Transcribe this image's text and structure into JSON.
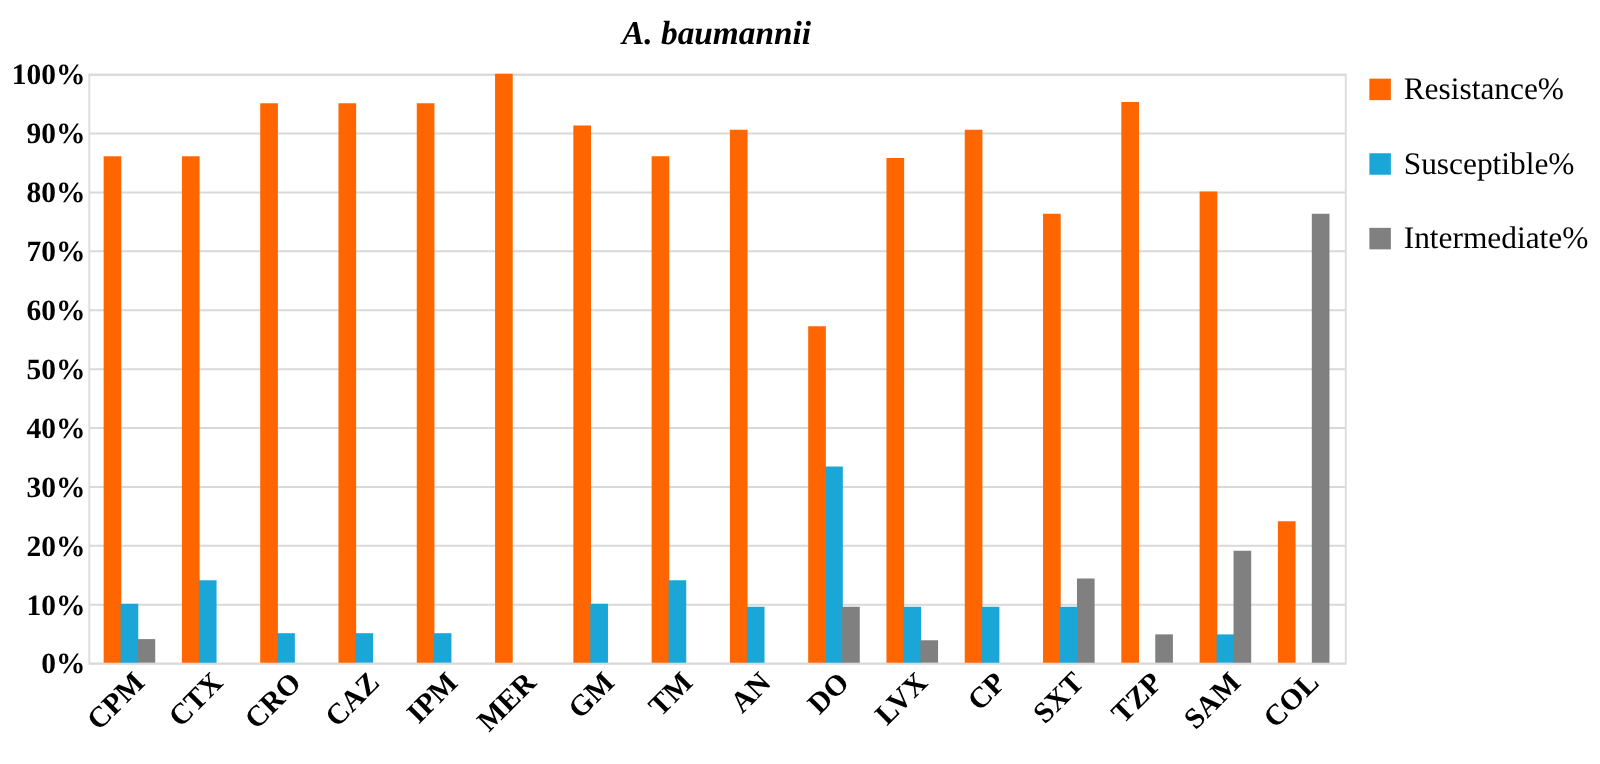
{
  "chart_data": {
    "type": "bar",
    "title": "A. baumannii",
    "categories": [
      "CPM",
      "CTX",
      "CRO",
      "CAZ",
      "IPM",
      "MER",
      "GM",
      "TM",
      "AN",
      "DO",
      "LVX",
      "CP",
      "SXT",
      "TZP",
      "SAM",
      "COL"
    ],
    "series": [
      {
        "name": "Resistance%",
        "color": "#ff6600",
        "values": [
          86,
          86,
          95,
          95,
          95,
          100,
          91.2,
          86,
          90.5,
          57.1,
          85.7,
          90.5,
          76.2,
          95.2,
          80,
          24
        ]
      },
      {
        "name": "Susceptible%",
        "color": "#1aa7d8",
        "values": [
          10,
          14,
          5,
          5,
          5,
          null,
          10,
          14,
          9.5,
          33.3,
          9.5,
          9.5,
          9.5,
          null,
          4.8,
          null
        ]
      },
      {
        "name": "Intermediate%",
        "color": "#808080",
        "values": [
          4,
          null,
          null,
          null,
          null,
          null,
          null,
          null,
          null,
          9.5,
          3.8,
          null,
          14.3,
          4.8,
          19,
          76.2
        ]
      }
    ],
    "ylim": [
      0,
      100
    ],
    "yticks": [
      {
        "value": 0,
        "label": "0%"
      },
      {
        "value": 10,
        "label": "10%"
      },
      {
        "value": 20,
        "label": "20%"
      },
      {
        "value": 30,
        "label": "30%"
      },
      {
        "value": 40,
        "label": "40%"
      },
      {
        "value": 50,
        "label": "50%"
      },
      {
        "value": 60,
        "label": "60%"
      },
      {
        "value": 70,
        "label": "70%"
      },
      {
        "value": 80,
        "label": "80%"
      },
      {
        "value": 90,
        "label": "90%"
      },
      {
        "value": 100,
        "label": "100%"
      }
    ],
    "grid": "y",
    "legend": "right"
  }
}
